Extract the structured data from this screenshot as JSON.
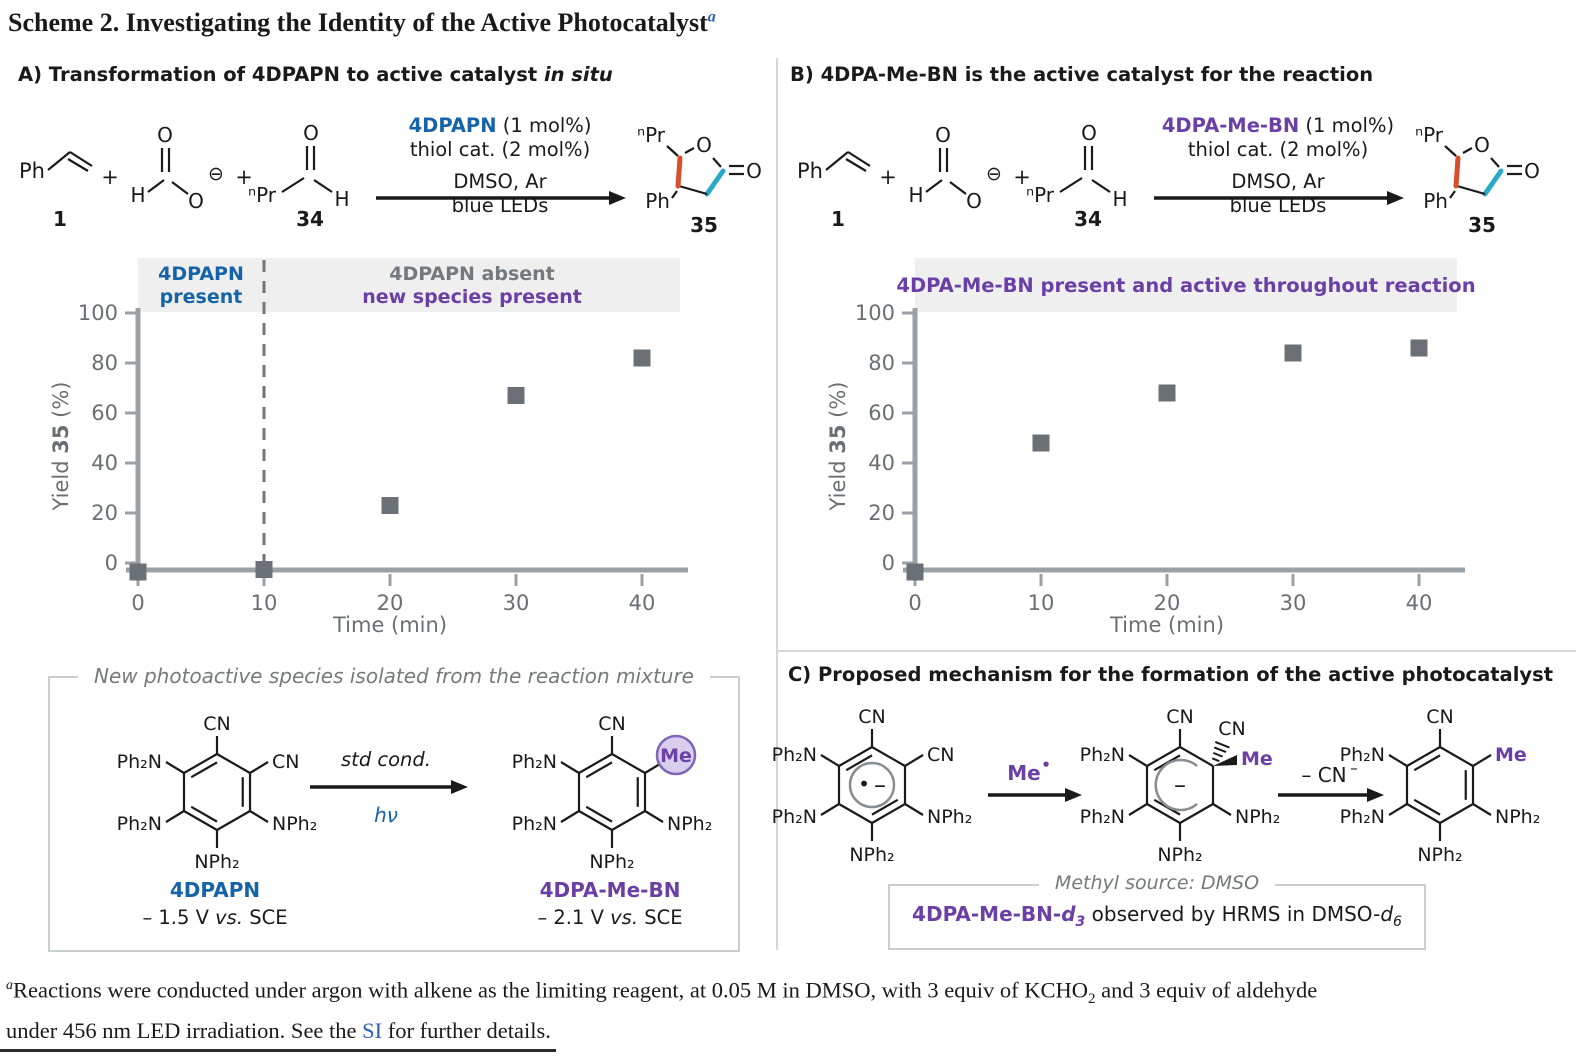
{
  "title": {
    "main": "Scheme 2. Investigating the Identity of the Active Photocatalyst",
    "sup": "a"
  },
  "colors": {
    "blue": "#1763a8",
    "purple": "#6a3fa6",
    "red_bond": "#d94e2b",
    "cyan_bond": "#2aa9c9",
    "link": "#2d5fb8",
    "gray_annotation": "#74797d"
  },
  "panels": {
    "a": {
      "header_main": "A) Transformation of 4DPAPN to active catalyst ",
      "header_italic": "in situ"
    },
    "b": {
      "header_main": "B) 4DPA-Me-BN is the active catalyst for the reaction"
    },
    "c": {
      "header_main": "C) Proposed mechanism for the formation of the active photocatalyst"
    }
  },
  "scheme": {
    "styrene_label": "Ph",
    "styrene_num": "1",
    "plus": "+",
    "formate_h": "H",
    "formate_o_top": "O",
    "formate_o": "O",
    "formate_charge": "⊖",
    "aldehyde_npr": "ⁿPr",
    "aldehyde_o": "O",
    "aldehyde_h": "H",
    "aldehyde_num": "34",
    "cat_a": "4DPAPN",
    "cat_b": "4DPA-Me-BN",
    "cat_suffix": " (1 mol%)",
    "cond_line2": "thiol cat. (2 mol%)",
    "cond_line3": "DMSO, Ar",
    "cond_line4": "blue LEDs",
    "product_npr": "ⁿPr",
    "product_o_ring": "O",
    "product_o_carbonyl": "O",
    "product_ph": "Ph",
    "product_num": "35"
  },
  "chart_data": [
    {
      "panel": "A",
      "type": "scatter",
      "x": [
        0,
        10,
        20,
        30,
        40
      ],
      "y": [
        0,
        1,
        23,
        67,
        82
      ],
      "xlabel": "Time (min)",
      "ylabel": "Yield 35 (%)",
      "ylabel_pre": "Yield ",
      "ylabel_bold": "35",
      "ylabel_post": " (%)",
      "xticks": [
        0,
        10,
        20,
        30,
        40
      ],
      "yticks": [
        0,
        20,
        40,
        60,
        80,
        100
      ],
      "xlim": [
        0,
        43
      ],
      "ylim": [
        0,
        100
      ],
      "grid": false,
      "legend": "none",
      "annotations": {
        "divider_x": 10,
        "left_line1": "4DPAPN",
        "left_line2": "present",
        "right_line1": "4DPAPN absent",
        "right_line2": "new species present"
      }
    },
    {
      "panel": "B",
      "type": "scatter",
      "x": [
        0,
        10,
        20,
        30,
        40
      ],
      "y": [
        0,
        48,
        68,
        84,
        86
      ],
      "xlabel": "Time (min)",
      "ylabel": "Yield 35 (%)",
      "ylabel_pre": "Yield ",
      "ylabel_bold": "35",
      "ylabel_post": " (%)",
      "xticks": [
        0,
        10,
        20,
        30,
        40
      ],
      "yticks": [
        0,
        20,
        40,
        60,
        80,
        100
      ],
      "xlim": [
        0,
        43
      ],
      "ylim": [
        0,
        100
      ],
      "grid": false,
      "legend": "none",
      "annotations": {
        "banner": "4DPA-Me-BN present and active throughout reaction"
      }
    }
  ],
  "structures": {
    "dpapn": {
      "top": "CN",
      "upper_right": "CN",
      "upper_left": "Ph₂N",
      "lower_left": "Ph₂N",
      "lower_right": "NPh₂",
      "bottom": "NPh₂"
    },
    "me_bn": {
      "top": "CN",
      "upper_right": "Me",
      "upper_left": "Ph₂N",
      "lower_left": "Ph₂N",
      "lower_right": "NPh₂",
      "bottom": "NPh₂"
    },
    "mech_middle": {
      "top": "CN",
      "cn2": "CN",
      "me": "Me",
      "upper_left": "Ph₂N",
      "lower_left": "Ph₂N",
      "lower_right": "NPh₂",
      "bottom": "NPh₂",
      "charge": "–"
    },
    "radical": {
      "dot": "•",
      "charge": "–"
    },
    "arrow1": {
      "label": "Me",
      "sup": "•"
    },
    "arrow2": {
      "label": "– CN",
      "sup": "–"
    }
  },
  "species_box": {
    "title": "New photoactive species isolated from the reaction mixture",
    "cond_top": "std cond.",
    "cond_bottom": "hν",
    "left_name": "4DPAPN",
    "left_potential_pre": "– 1.5 V ",
    "right_name": "4DPA-Me-BN",
    "right_potential_pre": "– 2.1 V ",
    "vs": "vs.",
    "sce": " SCE"
  },
  "methyl_box": {
    "title": "Methyl source: DMSO",
    "name_prefix": "4DPA-Me-BN-",
    "name_d": "d",
    "name_sub": "3",
    "text_mid": " observed by HRMS in DMSO-",
    "text_d": "d",
    "text_sub": "6"
  },
  "footnote": {
    "sup": "a",
    "line1_a": "Reactions were conducted under argon with alkene as the limiting reagent, at 0.05 M in DMSO, with 3 equiv of KCHO",
    "line1_sub": "2",
    "line1_b": " and 3 equiv of aldehyde",
    "line2_a": "under 456 nm LED irradiation. See the ",
    "link": "SI",
    "line2_b": " for further details."
  }
}
